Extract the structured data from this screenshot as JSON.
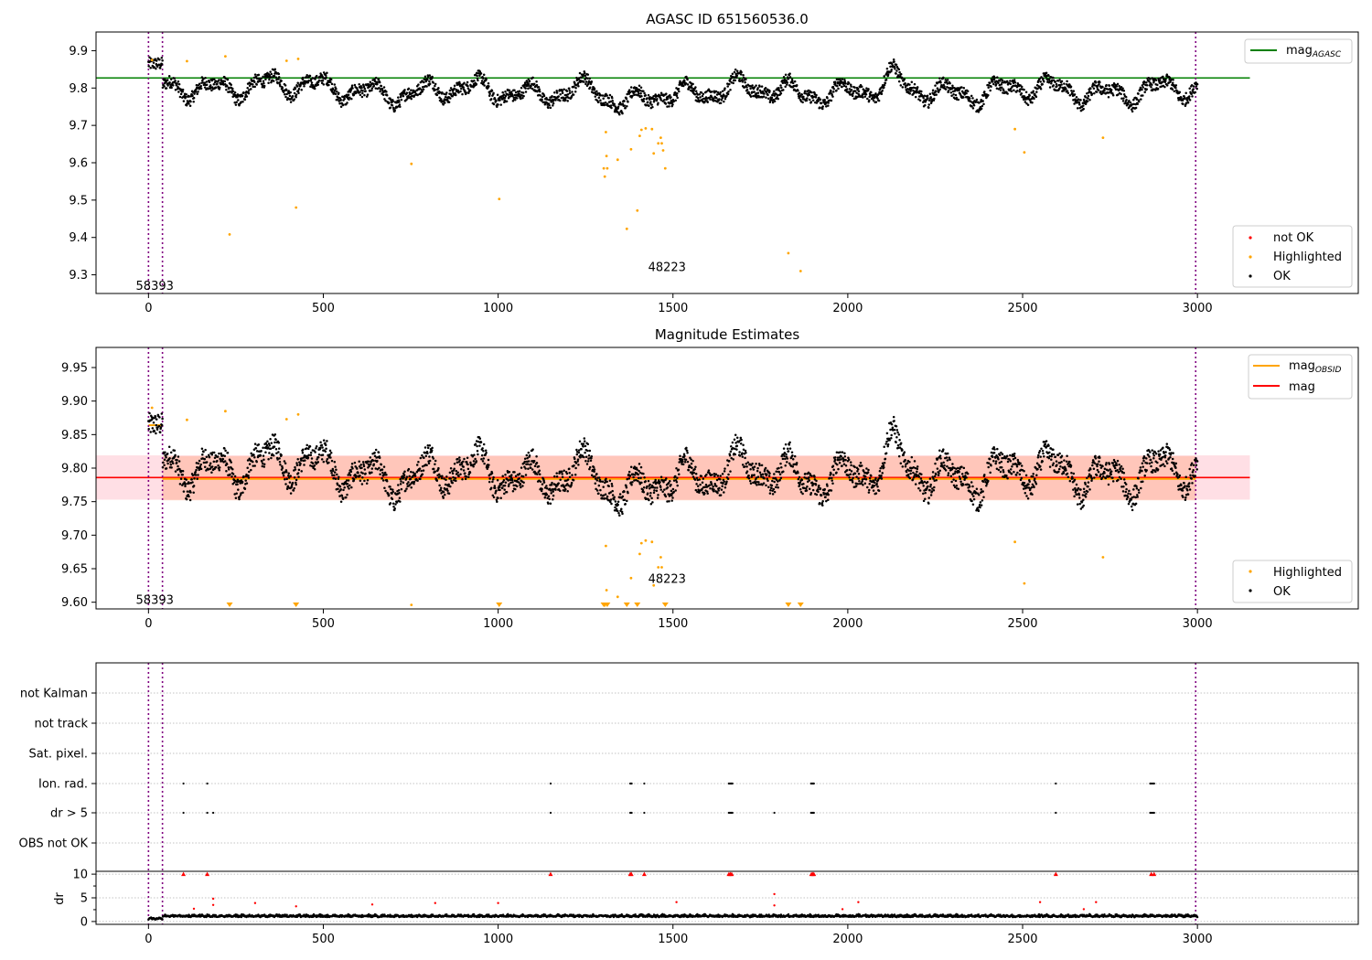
{
  "figure": {
    "title": "AGASC ID 651560536.0"
  },
  "chart_data": [
    {
      "type": "scatter",
      "title": "AGASC ID 651560536.0",
      "xlim": [
        -150,
        3460
      ],
      "ylim": [
        9.25,
        9.95
      ],
      "xticks": [
        0,
        500,
        1000,
        1500,
        2000,
        2500,
        3000
      ],
      "yticks": [
        9.3,
        9.4,
        9.5,
        9.6,
        9.7,
        9.8,
        9.9
      ],
      "ytick_decimals": 1,
      "grid": false,
      "reference_line": {
        "name": "mag_AGASC",
        "label_main": "mag",
        "label_sub": "AGASC",
        "y": 9.827,
        "x_range": [
          -150,
          3150
        ],
        "color": "#007f00"
      },
      "vlines": [
        {
          "x": 0
        },
        {
          "x": 40
        },
        {
          "x": 2995
        }
      ],
      "vline_color": "#800080",
      "obsid_annotations": [
        {
          "text": "58393",
          "x": 18,
          "y": 9.27
        },
        {
          "text": "48223",
          "x": 1483,
          "y": 9.32
        }
      ],
      "highlighted": [
        [
          10,
          9.875
        ],
        [
          110,
          9.872
        ],
        [
          220,
          9.885
        ],
        [
          232,
          9.408
        ],
        [
          395,
          9.873
        ],
        [
          422,
          9.48
        ],
        [
          428,
          9.878
        ],
        [
          752,
          9.597
        ],
        [
          1003,
          9.503
        ],
        [
          1302,
          9.585
        ],
        [
          1305,
          9.563
        ],
        [
          1308,
          9.682
        ],
        [
          1310,
          9.618
        ],
        [
          1312,
          9.585
        ],
        [
          1342,
          9.608
        ],
        [
          1368,
          9.423
        ],
        [
          1380,
          9.636
        ],
        [
          1398,
          9.472
        ],
        [
          1405,
          9.672
        ],
        [
          1410,
          9.688
        ],
        [
          1422,
          9.692
        ],
        [
          1440,
          9.69
        ],
        [
          1445,
          9.625
        ],
        [
          1458,
          9.652
        ],
        [
          1465,
          9.667
        ],
        [
          1468,
          9.652
        ],
        [
          1472,
          9.633
        ],
        [
          1478,
          9.585
        ],
        [
          1830,
          9.358
        ],
        [
          1865,
          9.31
        ],
        [
          2478,
          9.69
        ],
        [
          2505,
          9.628
        ],
        [
          2730,
          9.667
        ]
      ],
      "ok_series": {
        "name": "OK",
        "color": "#000000",
        "x_range": [
          0,
          3000
        ]
      },
      "legend_lines": {
        "position": "upper-right",
        "entries": [
          {
            "label": "mag",
            "sub": "AGASC",
            "color": "#007f00"
          }
        ]
      },
      "legend_points": {
        "position": "lower-right",
        "entries": [
          {
            "label": "not OK",
            "color": "#ff0000"
          },
          {
            "label": "Highlighted",
            "color": "#ffa500"
          },
          {
            "label": "OK",
            "color": "#000000"
          }
        ]
      }
    },
    {
      "type": "scatter",
      "title": "Magnitude Estimates",
      "xlim": [
        -150,
        3460
      ],
      "ylim": [
        9.59,
        9.98
      ],
      "xticks": [
        0,
        500,
        1000,
        1500,
        2000,
        2500,
        3000
      ],
      "yticks": [
        9.6,
        9.65,
        9.7,
        9.75,
        9.8,
        9.85,
        9.9,
        9.95
      ],
      "ytick_decimals": 2,
      "grid": false,
      "mag_line": {
        "name": "mag",
        "y": 9.786,
        "x_range": [
          -150,
          3150
        ],
        "color": "#ff0000"
      },
      "mag_band": {
        "y_low": 9.753,
        "y_high": 9.819,
        "x_range": [
          -150,
          3150
        ],
        "color": "#ffc0cb"
      },
      "mag_obsid_segments": [
        {
          "x0": 0,
          "x1": 40,
          "y": 9.864
        },
        {
          "x0": 40,
          "x1": 2995,
          "y": 9.784
        }
      ],
      "obsid_band": {
        "y_low": 9.752,
        "y_high": 9.818,
        "x_range": [
          40,
          2995
        ],
        "color": "#ffa07a"
      },
      "vlines": [
        {
          "x": 0
        },
        {
          "x": 40
        },
        {
          "x": 2995
        }
      ],
      "vline_color": "#800080",
      "obsid_annotations": [
        {
          "text": "58393",
          "x": 18,
          "y": 9.603
        },
        {
          "text": "48223",
          "x": 1483,
          "y": 9.634
        }
      ],
      "highlighted": [
        [
          10,
          9.89
        ],
        [
          110,
          9.872
        ],
        [
          220,
          9.885
        ],
        [
          395,
          9.873
        ],
        [
          428,
          9.88
        ],
        [
          752,
          9.596
        ],
        [
          1308,
          9.684
        ],
        [
          1310,
          9.618
        ],
        [
          1342,
          9.608
        ],
        [
          1380,
          9.636
        ],
        [
          1405,
          9.672
        ],
        [
          1410,
          9.688
        ],
        [
          1422,
          9.692
        ],
        [
          1440,
          9.69
        ],
        [
          1445,
          9.625
        ],
        [
          1458,
          9.652
        ],
        [
          1465,
          9.667
        ],
        [
          1468,
          9.652
        ],
        [
          2478,
          9.69
        ],
        [
          2505,
          9.628
        ],
        [
          2730,
          9.667
        ]
      ],
      "floor_markers": [
        232,
        422,
        1003,
        1302,
        1305,
        1312,
        1368,
        1398,
        1478,
        1830,
        1865
      ],
      "ok_series": {
        "name": "OK",
        "color": "#000000",
        "x_range": [
          0,
          3000
        ]
      },
      "legend_lines": {
        "position": "upper-right",
        "entries": [
          {
            "label": "mag",
            "sub": "OBSID",
            "color": "#ffa500"
          },
          {
            "label": "mag",
            "sub": "",
            "color": "#ff0000"
          }
        ]
      },
      "legend_points": {
        "position": "lower-right",
        "entries": [
          {
            "label": "Highlighted",
            "color": "#ffa500"
          },
          {
            "label": "OK",
            "color": "#000000"
          }
        ]
      }
    },
    {
      "type": "scatter",
      "title": "",
      "xlim": [
        -150,
        3460
      ],
      "xticks": [
        0,
        500,
        1000,
        1500,
        2000,
        2500,
        3000
      ],
      "flag_categories": [
        "not Kalman",
        "not track",
        "Sat. pixel.",
        "Ion. rad.",
        "dr > 5",
        "OBS not OK"
      ],
      "flags": {
        "Ion. rad.": [
          100,
          168,
          1150,
          1378,
          1380,
          1382,
          1418,
          1660,
          1662,
          1664,
          1666,
          1668,
          1670,
          1895,
          1897,
          1899,
          1901,
          1903,
          2595,
          2865,
          2868,
          2872,
          2876
        ],
        "dr > 5": [
          100,
          168,
          185,
          1150,
          1378,
          1380,
          1382,
          1418,
          1660,
          1662,
          1664,
          1666,
          1668,
          1670,
          1790,
          1895,
          1897,
          1899,
          1901,
          1903,
          2595,
          2865,
          2868,
          2872,
          2876
        ]
      },
      "vlines": [
        {
          "x": 0
        },
        {
          "x": 40
        },
        {
          "x": 2995
        }
      ],
      "vline_color": "#800080",
      "dr_panel": {
        "ylabel": "dr",
        "ylim": [
          -0.6,
          10.6
        ],
        "yticks": [
          0,
          5,
          10
        ],
        "high_points": [
          [
            100,
            10
          ],
          [
            168,
            10
          ],
          [
            1150,
            10
          ],
          [
            1378,
            10
          ],
          [
            1381,
            10
          ],
          [
            1418,
            10
          ],
          [
            1660,
            10
          ],
          [
            1664,
            10
          ],
          [
            1668,
            10
          ],
          [
            1896,
            10
          ],
          [
            1900,
            10
          ],
          [
            1903,
            10
          ],
          [
            2595,
            10
          ],
          [
            2868,
            10
          ],
          [
            2876,
            10
          ]
        ],
        "mid_points": [
          [
            185,
            4.8
          ],
          [
            185,
            3.5
          ],
          [
            305,
            3.9
          ],
          [
            422,
            3.2
          ],
          [
            640,
            3.6
          ],
          [
            820,
            3.9
          ],
          [
            1000,
            3.9
          ],
          [
            1510,
            4.1
          ],
          [
            1790,
            5.8
          ],
          [
            1790,
            3.4
          ],
          [
            2030,
            4.1
          ],
          [
            2550,
            4.1
          ],
          [
            2710,
            4.1
          ],
          [
            130,
            2.7
          ],
          [
            1985,
            2.6
          ],
          [
            2675,
            2.6
          ]
        ],
        "high_color": "#ff0000",
        "ok_color": "#000000"
      }
    }
  ]
}
